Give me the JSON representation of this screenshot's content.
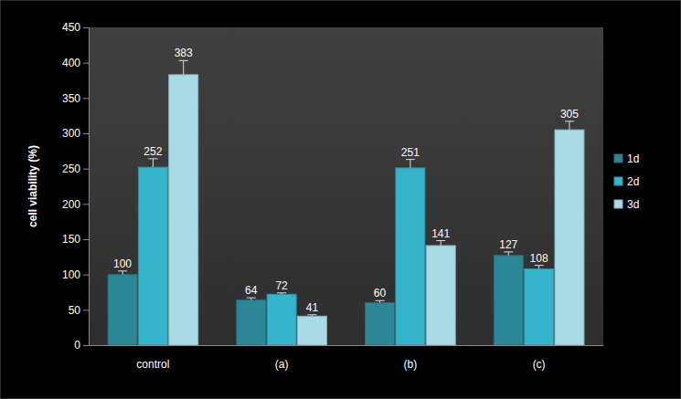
{
  "chart_data": {
    "type": "bar",
    "y_label": "cell viability (%)",
    "categories": [
      "control",
      "(a)",
      "(b)",
      "(c)"
    ],
    "series": [
      {
        "name": "1d",
        "color": "#2b8796",
        "values": [
          100,
          64,
          60,
          127
        ],
        "errors": [
          5,
          3,
          3,
          5
        ]
      },
      {
        "name": "2d",
        "color": "#35b4cc",
        "values": [
          252,
          72,
          251,
          108
        ],
        "errors": [
          12,
          2,
          12,
          5
        ]
      },
      {
        "name": "3d",
        "color": "#a9dbe6",
        "values": [
          383,
          41,
          141,
          305
        ],
        "errors": [
          20,
          2,
          7,
          12
        ]
      }
    ],
    "ylim": [
      0,
      450
    ],
    "yticks": [
      0,
      50,
      100,
      150,
      200,
      250,
      300,
      350,
      400,
      450
    ],
    "grid": false,
    "legend": "right",
    "data_labels": true
  }
}
